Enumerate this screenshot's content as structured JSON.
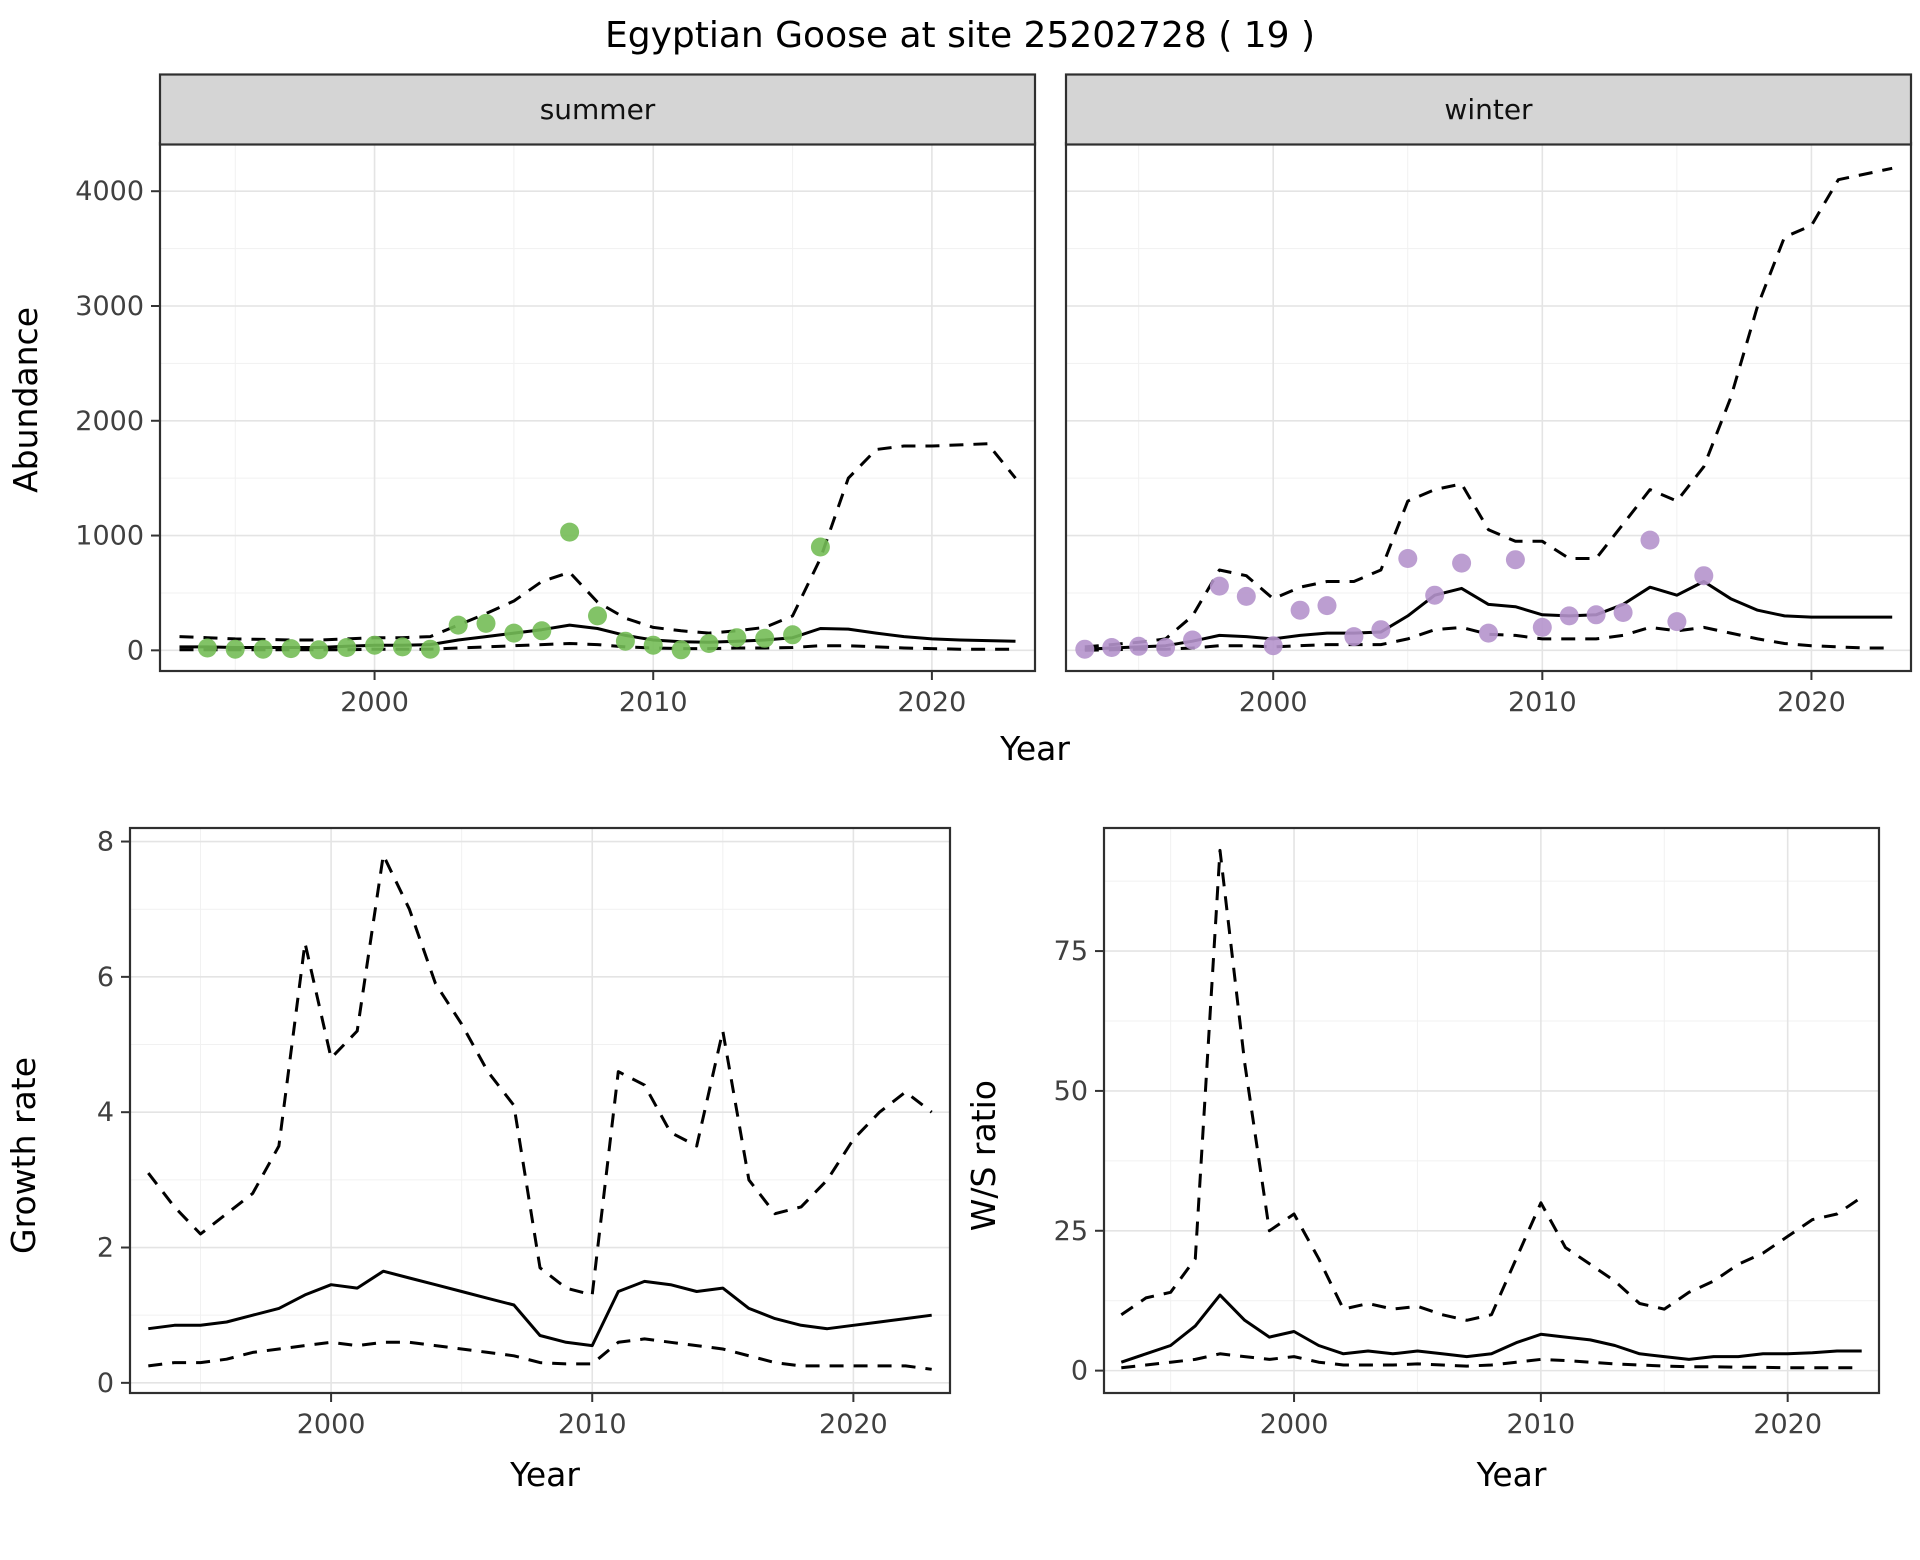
{
  "title": "Egyptian Goose at site 25202728 ( 19 )",
  "top_plot": {
    "ylabel": "Abundance",
    "xlabel": "Year"
  },
  "colors": {
    "summer_points": "#74bd57",
    "winter_points": "#b593cc",
    "line": "#000000",
    "strip_bg": "#d5d5d5",
    "panel_border": "#2f2f2f",
    "grid_major": "#e4e4e4",
    "grid_minor": "#f1f1f1",
    "tick_text": "#404040"
  },
  "chart_data": [
    {
      "id": "summer-abundance",
      "type": "line+scatter",
      "facet": "summer",
      "ylabel": "Abundance",
      "xlabel": "Year",
      "xlim": [
        1992.3,
        2023.7
      ],
      "ylim": [
        -180,
        4420
      ],
      "xticks": [
        2000,
        2010,
        2020
      ],
      "yticks": [
        0,
        1000,
        2000,
        3000,
        4000
      ],
      "x": [
        1993,
        1994,
        1995,
        1996,
        1997,
        1998,
        1999,
        2000,
        2001,
        2002,
        2003,
        2004,
        2005,
        2006,
        2007,
        2008,
        2009,
        2010,
        2011,
        2012,
        2013,
        2014,
        2015,
        2016,
        2017,
        2018,
        2019,
        2020,
        2021,
        2022,
        2023
      ],
      "series": [
        {
          "name": "upper-ci",
          "style": "dashed",
          "y": [
            120,
            110,
            100,
            95,
            90,
            90,
            100,
            110,
            110,
            120,
            220,
            320,
            430,
            600,
            680,
            420,
            280,
            200,
            170,
            150,
            170,
            200,
            300,
            800,
            1500,
            1750,
            1780,
            1780,
            1790,
            1800,
            1500
          ]
        },
        {
          "name": "lower-ci",
          "style": "dashed",
          "y": [
            5,
            5,
            5,
            5,
            5,
            5,
            5,
            10,
            10,
            10,
            20,
            30,
            40,
            50,
            60,
            50,
            30,
            20,
            15,
            15,
            20,
            20,
            25,
            40,
            40,
            30,
            20,
            15,
            10,
            10,
            10
          ]
        },
        {
          "name": "fit",
          "style": "solid",
          "y": [
            30,
            30,
            25,
            25,
            25,
            25,
            35,
            45,
            45,
            50,
            90,
            120,
            150,
            180,
            220,
            190,
            130,
            90,
            75,
            70,
            80,
            90,
            110,
            190,
            185,
            150,
            120,
            100,
            90,
            85,
            80
          ]
        },
        {
          "name": "observed",
          "style": "points",
          "color": "#74bd57",
          "x": [
            1994,
            1995,
            1996,
            1997,
            1998,
            1999,
            2000,
            2001,
            2002,
            2003,
            2004,
            2005,
            2006,
            2007,
            2008,
            2009,
            2010,
            2011,
            2012,
            2013,
            2014,
            2015,
            2016
          ],
          "y": [
            20,
            10,
            10,
            15,
            5,
            25,
            45,
            30,
            10,
            220,
            235,
            150,
            170,
            1030,
            300,
            80,
            45,
            5,
            60,
            110,
            105,
            135,
            900
          ]
        }
      ]
    },
    {
      "id": "winter-abundance",
      "type": "line+scatter",
      "facet": "winter",
      "ylabel": "Abundance",
      "xlabel": "Year",
      "xlim": [
        1992.3,
        2023.7
      ],
      "ylim": [
        -180,
        4420
      ],
      "xticks": [
        2000,
        2010,
        2020
      ],
      "yticks": [
        0,
        1000,
        2000,
        3000,
        4000
      ],
      "x": [
        1993,
        1994,
        1995,
        1996,
        1997,
        1998,
        1999,
        2000,
        2001,
        2002,
        2003,
        2004,
        2005,
        2006,
        2007,
        2008,
        2009,
        2010,
        2011,
        2012,
        2013,
        2014,
        2015,
        2016,
        2017,
        2018,
        2019,
        2020,
        2021,
        2022,
        2023
      ],
      "series": [
        {
          "name": "upper-ci",
          "style": "dashed",
          "y": [
            30,
            50,
            70,
            100,
            300,
            700,
            650,
            450,
            550,
            600,
            600,
            700,
            1300,
            1400,
            1450,
            1050,
            950,
            950,
            800,
            800,
            1100,
            1400,
            1300,
            1600,
            2200,
            3000,
            3600,
            3700,
            4100,
            4150,
            4200
          ]
        },
        {
          "name": "lower-ci",
          "style": "dashed",
          "y": [
            0,
            5,
            10,
            10,
            20,
            40,
            40,
            30,
            40,
            50,
            50,
            50,
            100,
            180,
            200,
            140,
            130,
            100,
            100,
            100,
            130,
            200,
            170,
            200,
            150,
            100,
            60,
            40,
            30,
            20,
            20
          ]
        },
        {
          "name": "fit",
          "style": "solid",
          "y": [
            10,
            20,
            30,
            40,
            80,
            130,
            120,
            100,
            130,
            150,
            150,
            160,
            300,
            480,
            540,
            400,
            380,
            310,
            300,
            310,
            400,
            550,
            480,
            600,
            450,
            350,
            300,
            290,
            290,
            290,
            290
          ]
        },
        {
          "name": "observed",
          "style": "points",
          "color": "#b593cc",
          "x": [
            1993,
            1994,
            1995,
            1996,
            1997,
            1998,
            1999,
            2000,
            2001,
            2002,
            2003,
            2004,
            2005,
            2006,
            2007,
            2008,
            2009,
            2010,
            2011,
            2012,
            2013,
            2014,
            2015,
            2016
          ],
          "y": [
            10,
            25,
            35,
            25,
            90,
            560,
            470,
            40,
            350,
            390,
            120,
            180,
            800,
            480,
            760,
            150,
            790,
            200,
            300,
            310,
            330,
            960,
            250,
            650
          ]
        }
      ]
    },
    {
      "id": "growth-rate",
      "type": "line",
      "facet": null,
      "ylabel": "Growth rate",
      "xlabel": "Year",
      "xlim": [
        1992.3,
        2023.7
      ],
      "ylim": [
        -0.15,
        8.2
      ],
      "xticks": [
        2000,
        2010,
        2020
      ],
      "yticks": [
        0,
        2,
        4,
        6,
        8
      ],
      "x": [
        1993,
        1994,
        1995,
        1996,
        1997,
        1998,
        1999,
        2000,
        2001,
        2002,
        2003,
        2004,
        2005,
        2006,
        2007,
        2008,
        2009,
        2010,
        2011,
        2012,
        2013,
        2014,
        2015,
        2016,
        2017,
        2018,
        2019,
        2020,
        2021,
        2022,
        2023
      ],
      "series": [
        {
          "name": "upper-ci",
          "style": "dashed",
          "y": [
            3.1,
            2.6,
            2.2,
            2.5,
            2.8,
            3.5,
            6.5,
            4.8,
            5.2,
            7.8,
            7.0,
            5.9,
            5.3,
            4.6,
            4.1,
            1.7,
            1.4,
            1.3,
            4.6,
            4.4,
            3.7,
            3.5,
            5.2,
            3.0,
            2.5,
            2.6,
            3.0,
            3.6,
            4.0,
            4.3,
            4.0
          ]
        },
        {
          "name": "lower-ci",
          "style": "dashed",
          "y": [
            0.25,
            0.3,
            0.3,
            0.35,
            0.45,
            0.5,
            0.55,
            0.6,
            0.55,
            0.6,
            0.6,
            0.55,
            0.5,
            0.45,
            0.4,
            0.3,
            0.28,
            0.28,
            0.6,
            0.65,
            0.6,
            0.55,
            0.5,
            0.4,
            0.3,
            0.25,
            0.25,
            0.25,
            0.25,
            0.25,
            0.2
          ]
        },
        {
          "name": "fit",
          "style": "solid",
          "y": [
            0.8,
            0.85,
            0.85,
            0.9,
            1.0,
            1.1,
            1.3,
            1.45,
            1.4,
            1.65,
            1.55,
            1.45,
            1.35,
            1.25,
            1.15,
            0.7,
            0.6,
            0.55,
            1.35,
            1.5,
            1.45,
            1.35,
            1.4,
            1.1,
            0.95,
            0.85,
            0.8,
            0.85,
            0.9,
            0.95,
            1.0
          ]
        }
      ]
    },
    {
      "id": "ws-ratio",
      "type": "line",
      "facet": null,
      "ylabel": "W/S ratio",
      "xlabel": "Year",
      "xlim": [
        1992.3,
        2023.7
      ],
      "ylim": [
        -4,
        97
      ],
      "xticks": [
        2000,
        2010,
        2020
      ],
      "yticks": [
        0,
        25,
        50,
        75
      ],
      "x": [
        1993,
        1994,
        1995,
        1996,
        1997,
        1998,
        1999,
        2000,
        2001,
        2002,
        2003,
        2004,
        2005,
        2006,
        2007,
        2008,
        2009,
        2010,
        2011,
        2012,
        2013,
        2014,
        2015,
        2016,
        2017,
        2018,
        2019,
        2020,
        2021,
        2022,
        2023
      ],
      "series": [
        {
          "name": "upper-ci",
          "style": "dashed",
          "y": [
            10,
            13,
            14,
            20,
            93,
            55,
            25,
            28,
            20,
            11,
            12,
            11,
            11.5,
            10,
            9,
            10,
            20,
            30,
            22,
            19,
            16,
            12,
            11,
            14,
            16,
            19,
            21,
            24,
            27,
            28,
            31
          ]
        },
        {
          "name": "lower-ci",
          "style": "dashed",
          "y": [
            0.5,
            1,
            1.5,
            2,
            3,
            2.5,
            2,
            2.5,
            1.5,
            1,
            1,
            1,
            1.2,
            1,
            0.8,
            1,
            1.5,
            2,
            1.8,
            1.5,
            1.2,
            1,
            0.8,
            0.7,
            0.7,
            0.6,
            0.6,
            0.5,
            0.5,
            0.5,
            0.5
          ]
        },
        {
          "name": "fit",
          "style": "solid",
          "y": [
            1.5,
            3,
            4.5,
            8,
            13.5,
            9,
            6,
            7,
            4.5,
            3,
            3.5,
            3,
            3.5,
            3,
            2.5,
            3,
            5,
            6.5,
            6,
            5.5,
            4.5,
            3,
            2.5,
            2,
            2.5,
            2.5,
            3,
            3,
            3.2,
            3.5,
            3.5
          ]
        }
      ]
    }
  ]
}
